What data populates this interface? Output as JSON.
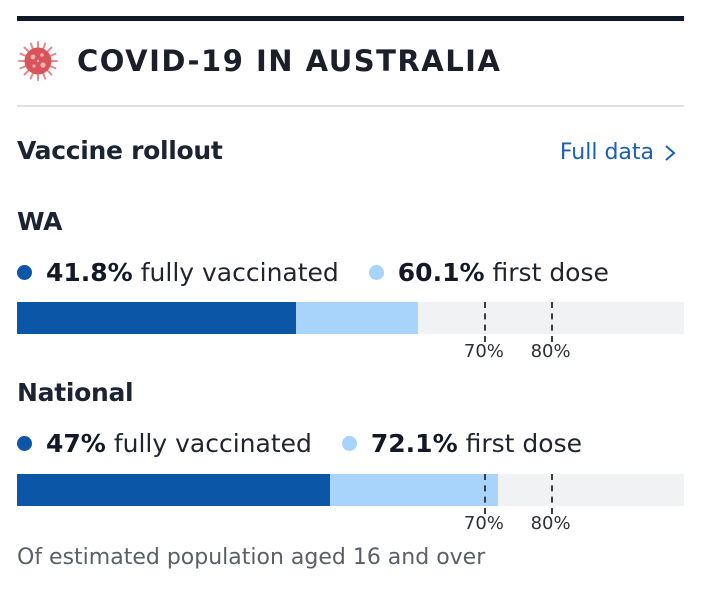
{
  "header": {
    "icon": "virus-icon",
    "title": "COVID-19 IN AUSTRALIA"
  },
  "section": {
    "title": "Vaccine rollout",
    "link_label": "Full data",
    "link_icon": "chevron-right-icon"
  },
  "regions": [
    {
      "name": "WA",
      "fully_vaccinated_pct": 41.8,
      "fully_vaccinated_value": "41.8%",
      "fully_vaccinated_label": "fully vaccinated",
      "first_dose_pct": 60.1,
      "first_dose_value": "60.1%",
      "first_dose_label": "first dose"
    },
    {
      "name": "National",
      "fully_vaccinated_pct": 47,
      "fully_vaccinated_value": "47%",
      "fully_vaccinated_label": "fully vaccinated",
      "first_dose_pct": 72.1,
      "first_dose_value": "72.1%",
      "first_dose_label": "first dose"
    }
  ],
  "targets": [
    {
      "pct": 70,
      "label": "70%"
    },
    {
      "pct": 80,
      "label": "80%"
    }
  ],
  "footnote": "Of estimated population aged 16 and over",
  "colors": {
    "fully_vaccinated": "#0b56a7",
    "first_dose": "#a8d3fb",
    "bar_background": "#f1f2f4",
    "link": "#1a5fb4",
    "virus": "#d9545a"
  }
}
